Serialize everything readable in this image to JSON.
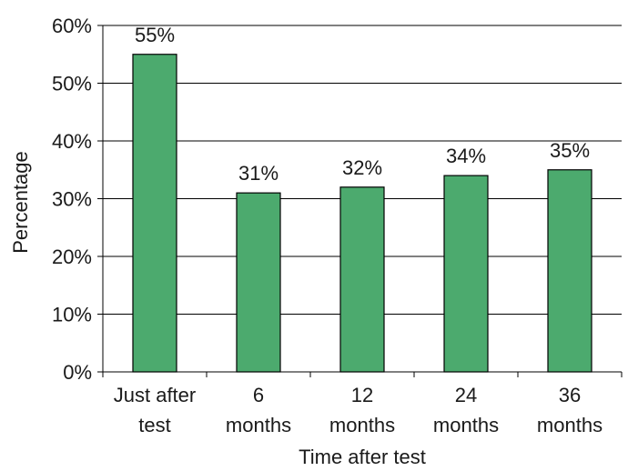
{
  "chart_data": {
    "type": "bar",
    "title": "",
    "xlabel": "Time after test",
    "ylabel": "Percentage",
    "categories": [
      [
        "Just after",
        "test"
      ],
      [
        "6",
        "months"
      ],
      [
        "12",
        "months"
      ],
      [
        "24",
        "months"
      ],
      [
        "36",
        "months"
      ]
    ],
    "values": [
      55,
      31,
      32,
      34,
      35
    ],
    "data_labels": [
      "55%",
      "31%",
      "32%",
      "34%",
      "35%"
    ],
    "ylim": [
      0,
      60
    ],
    "yticks": [
      "0%",
      "10%",
      "20%",
      "30%",
      "40%",
      "50%",
      "60%"
    ],
    "grid": true,
    "legend": "none",
    "bar_color": "#4caa6e",
    "bar_edge_color": "#000000",
    "grid_color": "#000000"
  }
}
